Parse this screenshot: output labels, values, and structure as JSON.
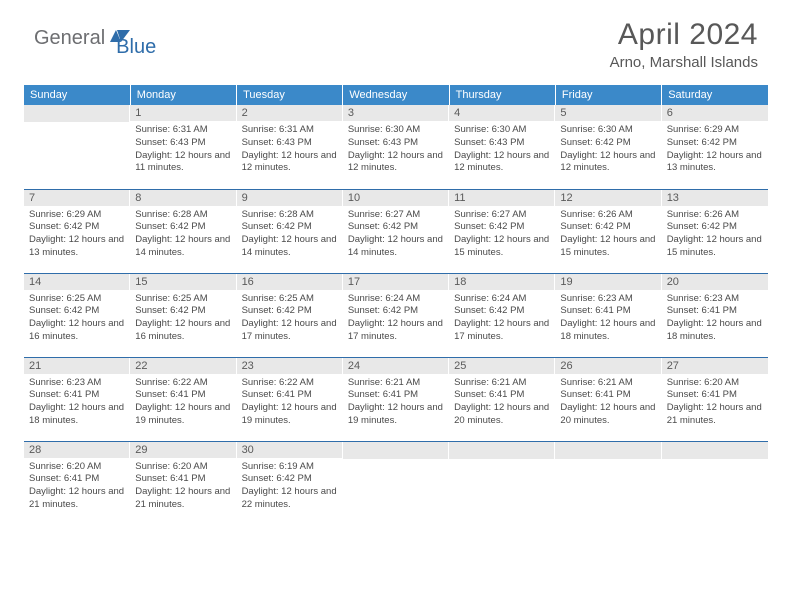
{
  "logo": {
    "text1": "General",
    "text2": "Blue"
  },
  "title": "April 2024",
  "location": "Arno, Marshall Islands",
  "colors": {
    "header_bg": "#3b89c9",
    "header_text": "#ffffff",
    "daynum_bg": "#e8e8e8",
    "border": "#2f6daa",
    "logo_gray": "#6d6e71",
    "logo_blue": "#2f6daa",
    "text": "#4a4a4a"
  },
  "weekdays": [
    "Sunday",
    "Monday",
    "Tuesday",
    "Wednesday",
    "Thursday",
    "Friday",
    "Saturday"
  ],
  "start_offset": 1,
  "days": [
    {
      "n": 1,
      "sunrise": "6:31 AM",
      "sunset": "6:43 PM",
      "daylight": "12 hours and 11 minutes."
    },
    {
      "n": 2,
      "sunrise": "6:31 AM",
      "sunset": "6:43 PM",
      "daylight": "12 hours and 12 minutes."
    },
    {
      "n": 3,
      "sunrise": "6:30 AM",
      "sunset": "6:43 PM",
      "daylight": "12 hours and 12 minutes."
    },
    {
      "n": 4,
      "sunrise": "6:30 AM",
      "sunset": "6:43 PM",
      "daylight": "12 hours and 12 minutes."
    },
    {
      "n": 5,
      "sunrise": "6:30 AM",
      "sunset": "6:42 PM",
      "daylight": "12 hours and 12 minutes."
    },
    {
      "n": 6,
      "sunrise": "6:29 AM",
      "sunset": "6:42 PM",
      "daylight": "12 hours and 13 minutes."
    },
    {
      "n": 7,
      "sunrise": "6:29 AM",
      "sunset": "6:42 PM",
      "daylight": "12 hours and 13 minutes."
    },
    {
      "n": 8,
      "sunrise": "6:28 AM",
      "sunset": "6:42 PM",
      "daylight": "12 hours and 14 minutes."
    },
    {
      "n": 9,
      "sunrise": "6:28 AM",
      "sunset": "6:42 PM",
      "daylight": "12 hours and 14 minutes."
    },
    {
      "n": 10,
      "sunrise": "6:27 AM",
      "sunset": "6:42 PM",
      "daylight": "12 hours and 14 minutes."
    },
    {
      "n": 11,
      "sunrise": "6:27 AM",
      "sunset": "6:42 PM",
      "daylight": "12 hours and 15 minutes."
    },
    {
      "n": 12,
      "sunrise": "6:26 AM",
      "sunset": "6:42 PM",
      "daylight": "12 hours and 15 minutes."
    },
    {
      "n": 13,
      "sunrise": "6:26 AM",
      "sunset": "6:42 PM",
      "daylight": "12 hours and 15 minutes."
    },
    {
      "n": 14,
      "sunrise": "6:25 AM",
      "sunset": "6:42 PM",
      "daylight": "12 hours and 16 minutes."
    },
    {
      "n": 15,
      "sunrise": "6:25 AM",
      "sunset": "6:42 PM",
      "daylight": "12 hours and 16 minutes."
    },
    {
      "n": 16,
      "sunrise": "6:25 AM",
      "sunset": "6:42 PM",
      "daylight": "12 hours and 17 minutes."
    },
    {
      "n": 17,
      "sunrise": "6:24 AM",
      "sunset": "6:42 PM",
      "daylight": "12 hours and 17 minutes."
    },
    {
      "n": 18,
      "sunrise": "6:24 AM",
      "sunset": "6:42 PM",
      "daylight": "12 hours and 17 minutes."
    },
    {
      "n": 19,
      "sunrise": "6:23 AM",
      "sunset": "6:41 PM",
      "daylight": "12 hours and 18 minutes."
    },
    {
      "n": 20,
      "sunrise": "6:23 AM",
      "sunset": "6:41 PM",
      "daylight": "12 hours and 18 minutes."
    },
    {
      "n": 21,
      "sunrise": "6:23 AM",
      "sunset": "6:41 PM",
      "daylight": "12 hours and 18 minutes."
    },
    {
      "n": 22,
      "sunrise": "6:22 AM",
      "sunset": "6:41 PM",
      "daylight": "12 hours and 19 minutes."
    },
    {
      "n": 23,
      "sunrise": "6:22 AM",
      "sunset": "6:41 PM",
      "daylight": "12 hours and 19 minutes."
    },
    {
      "n": 24,
      "sunrise": "6:21 AM",
      "sunset": "6:41 PM",
      "daylight": "12 hours and 19 minutes."
    },
    {
      "n": 25,
      "sunrise": "6:21 AM",
      "sunset": "6:41 PM",
      "daylight": "12 hours and 20 minutes."
    },
    {
      "n": 26,
      "sunrise": "6:21 AM",
      "sunset": "6:41 PM",
      "daylight": "12 hours and 20 minutes."
    },
    {
      "n": 27,
      "sunrise": "6:20 AM",
      "sunset": "6:41 PM",
      "daylight": "12 hours and 21 minutes."
    },
    {
      "n": 28,
      "sunrise": "6:20 AM",
      "sunset": "6:41 PM",
      "daylight": "12 hours and 21 minutes."
    },
    {
      "n": 29,
      "sunrise": "6:20 AM",
      "sunset": "6:41 PM",
      "daylight": "12 hours and 21 minutes."
    },
    {
      "n": 30,
      "sunrise": "6:19 AM",
      "sunset": "6:42 PM",
      "daylight": "12 hours and 22 minutes."
    }
  ],
  "labels": {
    "sunrise": "Sunrise:",
    "sunset": "Sunset:",
    "daylight": "Daylight:"
  }
}
